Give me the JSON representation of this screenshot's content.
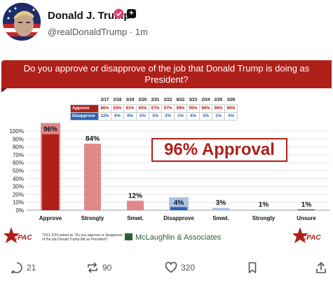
{
  "post": {
    "display_name": "Donald J. Trump",
    "handle": "@realDonaldTrump",
    "separator": "·",
    "time": "1m",
    "plus_badge": "+"
  },
  "image": {
    "question": "Do you approve or disapprove of the job that Donald Trump is doing as President?",
    "table": {
      "dates": [
        "2/17",
        "2/18",
        "3/19",
        "2/20",
        "2/21",
        "2/22",
        "8/22",
        "3/23",
        "2/24",
        "2/25",
        "3/26"
      ],
      "approve_label": "Approve",
      "disapprove_label": "Disapprove",
      "approve": [
        "86%",
        "93%",
        "91%",
        "95%",
        "97%",
        "97%",
        "99%",
        "95%",
        "96%",
        "96%",
        "96%"
      ],
      "disapprove": [
        "12%",
        "6%",
        "9%",
        "5%",
        "3%",
        "3%",
        "1%",
        "4%",
        "3%",
        "1%",
        "4%"
      ]
    },
    "approval_callout": "96% Approval",
    "footnote": "*2/21-2/24 asked as \"Do you approve or disapprove of the job Donald Trump did as President?",
    "pollster": "McLaughlin & Associates",
    "logo_text": "CPAC",
    "colors": {
      "approve_dark": "#b0201a",
      "approve_light": "#e0888a",
      "disapprove_dark": "#2f62b8",
      "disapprove_light": "#a9c4e6",
      "unsure": "#444444"
    }
  },
  "chart_data": {
    "type": "bar",
    "categories": [
      "Approve",
      "Strongly",
      "Smwt.",
      "Disapprove",
      "Smwt.",
      "Strongly",
      "Unsure"
    ],
    "values": [
      96,
      84,
      12,
      4,
      3,
      1,
      1
    ],
    "data_labels": [
      "96%",
      "84%",
      "12%",
      "4%",
      "3%",
      "1%",
      "1%"
    ],
    "y_ticks": [
      "0%",
      "10%",
      "20%",
      "30%",
      "40%",
      "50%",
      "60%",
      "70%",
      "80%",
      "90%",
      "100%"
    ],
    "ylim": [
      0,
      100
    ],
    "grid": true,
    "legend": "none"
  },
  "actions": {
    "replies": "21",
    "reposts": "90",
    "likes": "320"
  }
}
